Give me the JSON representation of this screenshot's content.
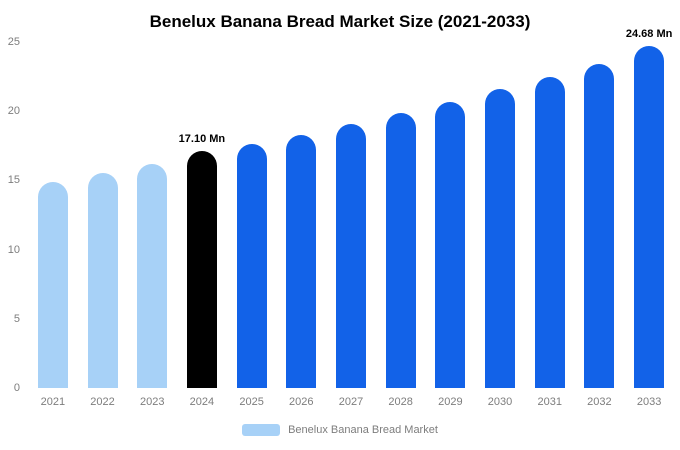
{
  "legend": {
    "label": "Benelux Banana Bread Market",
    "swatch_color": "#a7d1f7"
  },
  "colors": {
    "historical_bar": "#a7d1f7",
    "highlight_bar": "#000000",
    "forecast_bar": "#1262e8",
    "axis_text": "#7d7d7d",
    "data_label_text": "#000000"
  },
  "chart_data": {
    "type": "bar",
    "title": "Benelux Banana Bread Market Size (2021-2033)",
    "unit": "Mn",
    "categories": [
      "2021",
      "2022",
      "2023",
      "2024",
      "2025",
      "2026",
      "2027",
      "2028",
      "2029",
      "2030",
      "2031",
      "2032",
      "2033"
    ],
    "values": [
      14.9,
      15.5,
      16.2,
      17.1,
      17.6,
      18.3,
      19.1,
      19.9,
      20.7,
      21.6,
      22.5,
      23.4,
      24.68
    ],
    "bar_colors": [
      "#a7d1f7",
      "#a7d1f7",
      "#a7d1f7",
      "#000000",
      "#1262e8",
      "#1262e8",
      "#1262e8",
      "#1262e8",
      "#1262e8",
      "#1262e8",
      "#1262e8",
      "#1262e8",
      "#1262e8"
    ],
    "data_labels": [
      {
        "index": 3,
        "text": "17.10 Mn"
      },
      {
        "index": 12,
        "text": "24.68 Mn"
      }
    ],
    "xlabel": "",
    "ylabel": "",
    "ylim": [
      0,
      25
    ],
    "yticks": [
      0,
      5,
      10,
      15,
      20,
      25
    ],
    "grid": false,
    "legend_position": "bottom"
  }
}
